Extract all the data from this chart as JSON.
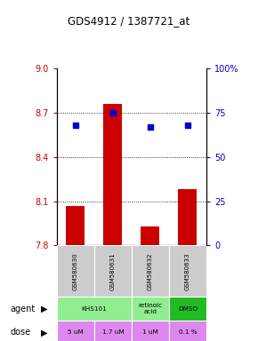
{
  "title": "GDS4912 / 1387721_at",
  "samples": [
    "GSM580630",
    "GSM580631",
    "GSM580632",
    "GSM580633"
  ],
  "bar_values": [
    8.07,
    8.76,
    7.93,
    8.18
  ],
  "percentile_values": [
    68,
    75,
    67,
    68
  ],
  "ylim_left": [
    7.8,
    9.0
  ],
  "ylim_right": [
    0,
    100
  ],
  "yticks_left": [
    7.8,
    8.1,
    8.4,
    8.7,
    9.0
  ],
  "yticks_right": [
    0,
    25,
    50,
    75,
    100
  ],
  "bar_color": "#CC0000",
  "dot_color": "#0000CC",
  "agent_groups": [
    {
      "label": "KHS101",
      "start": 0,
      "end": 2,
      "color": "#90EE90"
    },
    {
      "label": "retinoic\nacid",
      "start": 2,
      "end": 3,
      "color": "#90EE90"
    },
    {
      "label": "DMSO",
      "start": 3,
      "end": 4,
      "color": "#22BB22"
    }
  ],
  "dose_row": [
    "5 uM",
    "1.7 uM",
    "1 uM",
    "0.1 %"
  ],
  "dose_color": "#DD88EE",
  "sample_bg_color": "#CCCCCC",
  "left_tick_color": "#CC0000",
  "right_tick_color": "#0000CC"
}
